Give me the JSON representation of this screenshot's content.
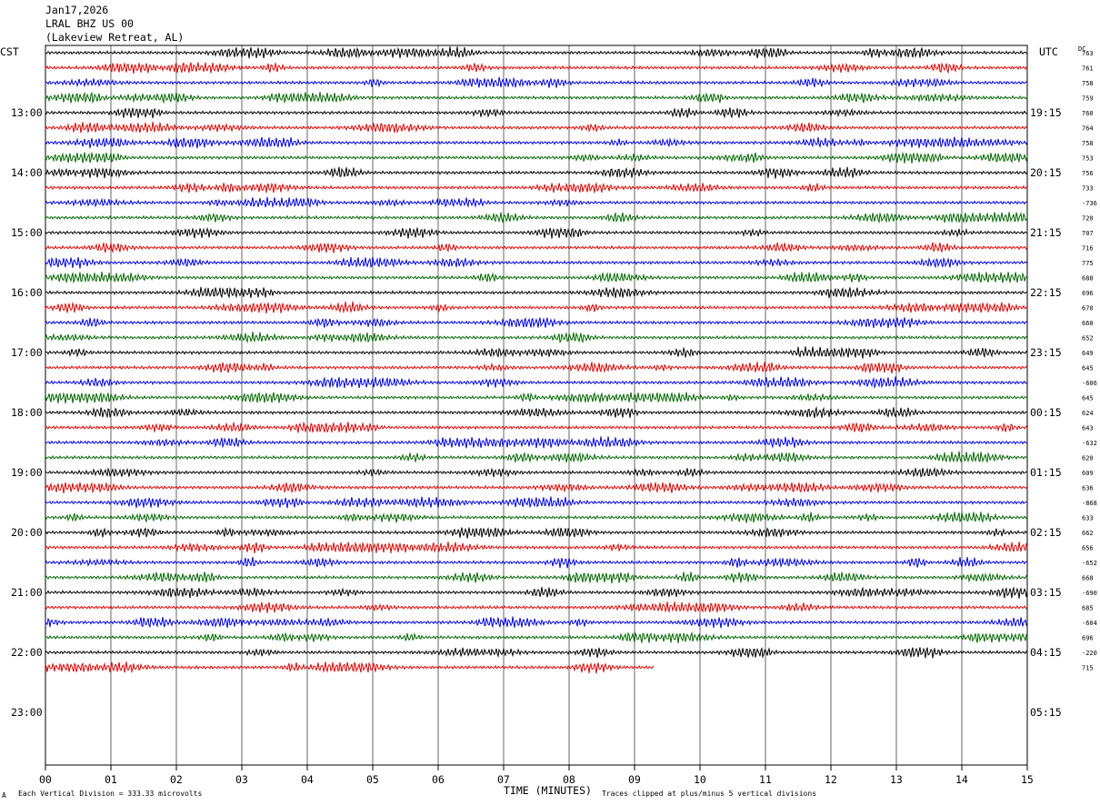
{
  "header": {
    "date": "Jan17,2026",
    "station": "LRAL BHZ US 00",
    "location": "(Lakeview Retreat, AL)"
  },
  "left_axis_label": "CST",
  "right_axis_label": "UTC",
  "dc_label": "DC",
  "footer": {
    "scale": "Each Vertical Division =  333.33 microvolts",
    "clip": "Traces clipped at plus/minus 5 vertical divisions",
    "corner_mark": "A"
  },
  "colors": [
    "#000000",
    "#dd0000",
    "#0000dd",
    "#006600"
  ],
  "chart_data": {
    "type": "line",
    "title": "LRAL BHZ US 00",
    "xlabel": "TIME (MINUTES)",
    "x_ticks": [
      "00",
      "01",
      "02",
      "03",
      "04",
      "05",
      "06",
      "07",
      "08",
      "09",
      "10",
      "11",
      "12",
      "13",
      "14",
      "15"
    ],
    "xlim": [
      0,
      15
    ],
    "minutes_per_line": 15,
    "left_hour_labels": [
      "13:00",
      "14:00",
      "15:00",
      "16:00",
      "17:00",
      "18:00",
      "19:00",
      "20:00",
      "21:00",
      "22:00",
      "23:00"
    ],
    "right_hour_labels": [
      "19:15",
      "20:15",
      "21:15",
      "22:15",
      "23:15",
      "00:15",
      "01:15",
      "02:15",
      "03:15",
      "04:15",
      "05:15"
    ],
    "dc_offsets": [
      "763",
      "761",
      "758",
      "759",
      "760",
      "764",
      "758",
      "753",
      "756",
      "733",
      "-736",
      "720",
      "707",
      "716",
      "775",
      "688",
      "696",
      "670",
      "660",
      "652",
      "649",
      "645",
      "-606",
      "645",
      "624",
      "643",
      "-632",
      "620",
      "609",
      "636",
      "-868",
      "633",
      "662",
      "656",
      "-652",
      "668",
      "-690",
      "685",
      "-604",
      "696",
      "-220",
      "715"
    ],
    "trace_count": 42,
    "last_trace_length_minutes": 9.3,
    "scale_microvolts_per_division": 333.33,
    "clip_divisions": 5
  }
}
